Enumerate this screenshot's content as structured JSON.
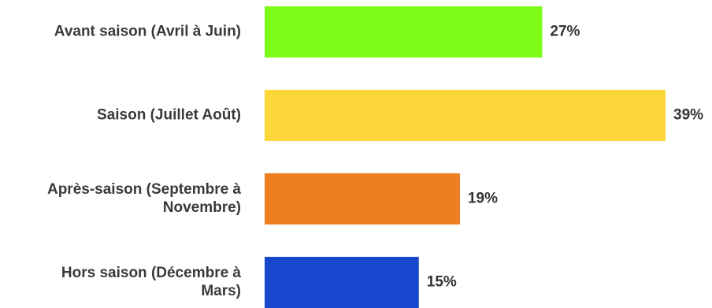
{
  "chart_data": {
    "type": "bar",
    "orientation": "horizontal",
    "categories": [
      [
        "Avant saison (Avril à Juin)"
      ],
      [
        "Saison (Juillet Août)"
      ],
      [
        "Après-saison (Septembre à",
        "Novembre)"
      ],
      [
        "Hors saison (Décembre à",
        "Mars)"
      ]
    ],
    "values": [
      27,
      39,
      19,
      15
    ],
    "value_labels": [
      "27%",
      "39%",
      "19%",
      "15%"
    ],
    "colors": [
      "#7dfc18",
      "#fdd639",
      "#ec7f22",
      "#1847ce"
    ],
    "xlim": [
      0,
      39
    ],
    "axis_visible": false,
    "grid": false,
    "legend": false
  }
}
